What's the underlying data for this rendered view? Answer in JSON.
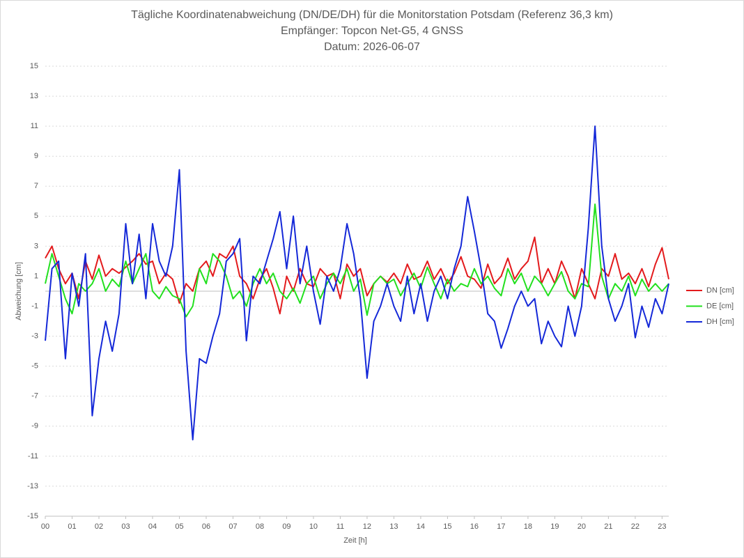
{
  "chart_data": {
    "type": "line",
    "title": "Tägliche Koordinatenabweichung (DN/DE/DH) für die Monitorstation Potsdam (Referenz 36,3 km)",
    "subtitle": "Empfänger: Topcon Net-G5, 4 GNSS",
    "date_label": "Datum: 2026-06-07",
    "x_label": "Zeit [h]",
    "y_label": "Abweichung [cm]",
    "x": [
      0,
      0.25,
      0.5,
      0.75,
      1,
      1.25,
      1.5,
      1.75,
      2,
      2.25,
      2.5,
      2.75,
      3,
      3.25,
      3.5,
      3.75,
      4,
      4.25,
      4.5,
      4.75,
      5,
      5.25,
      5.5,
      5.75,
      6,
      6.25,
      6.5,
      6.75,
      7,
      7.25,
      7.5,
      7.75,
      8,
      8.25,
      8.5,
      8.75,
      9,
      9.25,
      9.5,
      9.75,
      10,
      10.25,
      10.5,
      10.75,
      11,
      11.25,
      11.5,
      11.75,
      12,
      12.25,
      12.5,
      12.75,
      13,
      13.25,
      13.5,
      13.75,
      14,
      14.25,
      14.5,
      14.75,
      15,
      15.25,
      15.5,
      15.75,
      16,
      16.25,
      16.5,
      16.75,
      17,
      17.25,
      17.5,
      17.75,
      18,
      18.25,
      18.5,
      18.75,
      19,
      19.25,
      19.5,
      19.75,
      20,
      20.25,
      20.5,
      20.75,
      21,
      21.25,
      21.5,
      21.75,
      22,
      22.25,
      22.5,
      22.75,
      23,
      23.25
    ],
    "series": [
      {
        "name": "DN [cm]",
        "color": "#e31a1c",
        "values": [
          2.2,
          3.0,
          1.5,
          0.5,
          1.2,
          -0.5,
          2.0,
          0.8,
          2.4,
          1.0,
          1.5,
          1.2,
          1.6,
          2.0,
          2.5,
          1.8,
          2.0,
          0.5,
          1.2,
          0.8,
          -0.8,
          0.5,
          0.0,
          1.5,
          2.0,
          1.0,
          2.5,
          2.2,
          3.0,
          1.0,
          0.5,
          -0.5,
          0.8,
          1.5,
          0.2,
          -1.5,
          1.0,
          0.0,
          1.5,
          0.5,
          0.3,
          1.5,
          1.0,
          1.2,
          -0.5,
          1.8,
          1.0,
          1.5,
          -0.3,
          0.5,
          1.0,
          0.6,
          1.2,
          0.5,
          1.8,
          0.8,
          1.0,
          2.0,
          0.8,
          1.5,
          0.5,
          1.2,
          2.3,
          1.0,
          0.8,
          0.2,
          1.8,
          0.5,
          1.0,
          2.2,
          0.8,
          1.5,
          2.0,
          3.6,
          0.5,
          1.5,
          0.5,
          2.0,
          1.0,
          -0.5,
          1.5,
          0.5,
          -0.5,
          1.5,
          1.0,
          2.5,
          0.8,
          1.2,
          0.5,
          1.5,
          0.3,
          1.8,
          2.9,
          0.8
        ]
      },
      {
        "name": "DE [cm]",
        "color": "#22e01e",
        "values": [
          0.5,
          2.5,
          1.0,
          -0.5,
          -1.5,
          0.5,
          0.0,
          0.5,
          1.5,
          0.0,
          0.8,
          0.3,
          2.0,
          0.5,
          1.5,
          2.5,
          0.0,
          -0.5,
          0.3,
          -0.3,
          -0.5,
          -1.7,
          -1.0,
          1.5,
          0.5,
          2.5,
          2.0,
          1.0,
          -0.5,
          0.0,
          -1.0,
          0.5,
          1.5,
          0.5,
          1.2,
          0.0,
          -0.5,
          0.2,
          -0.8,
          0.5,
          1.0,
          -0.5,
          0.5,
          1.2,
          0.5,
          1.5,
          0.0,
          0.8,
          -1.6,
          0.5,
          1.0,
          0.5,
          0.8,
          -0.3,
          0.5,
          1.2,
          0.2,
          1.6,
          0.5,
          -0.5,
          0.8,
          0.0,
          0.5,
          0.3,
          1.5,
          0.5,
          1.0,
          0.2,
          -0.3,
          1.5,
          0.5,
          1.2,
          0.0,
          1.0,
          0.5,
          -0.3,
          0.5,
          1.3,
          0.0,
          -0.5,
          0.5,
          0.3,
          5.8,
          1.0,
          -0.5,
          0.5,
          0.0,
          1.0,
          -0.3,
          0.8,
          0.0,
          0.5,
          0.0,
          0.5
        ]
      },
      {
        "name": "DH [cm]",
        "color": "#1428d8",
        "values": [
          -3.3,
          1.5,
          2.0,
          -4.5,
          1.2,
          -1.0,
          2.5,
          -8.3,
          -4.5,
          -2.0,
          -4.0,
          -1.5,
          4.5,
          0.5,
          3.8,
          -0.5,
          4.5,
          2.0,
          1.0,
          3.0,
          8.1,
          -4.0,
          -9.9,
          -4.5,
          -4.8,
          -3.0,
          -1.5,
          2.0,
          2.5,
          3.5,
          -3.3,
          1.0,
          0.5,
          2.0,
          3.5,
          5.3,
          1.5,
          5.0,
          0.5,
          3.0,
          0.0,
          -2.2,
          1.0,
          0.0,
          1.5,
          4.5,
          2.5,
          -0.5,
          -5.8,
          -2.0,
          -1.0,
          0.5,
          -1.0,
          -2.0,
          1.0,
          -1.5,
          0.5,
          -2.0,
          0.0,
          1.0,
          -0.5,
          1.5,
          3.0,
          6.3,
          4.0,
          1.5,
          -1.5,
          -2.0,
          -3.8,
          -2.5,
          -1.0,
          0.0,
          -1.0,
          -0.5,
          -3.5,
          -2.0,
          -3.0,
          -3.7,
          -1.0,
          -3.0,
          -1.0,
          4.2,
          11.0,
          3.0,
          -0.5,
          -2.0,
          -1.0,
          0.5,
          -3.1,
          -1.0,
          -2.4,
          -0.5,
          -1.5,
          0.5
        ]
      }
    ],
    "xlim": [
      0,
      23.25
    ],
    "xticks": [
      {
        "value": 0,
        "label": "00"
      },
      {
        "value": 1,
        "label": "01"
      },
      {
        "value": 2,
        "label": "02"
      },
      {
        "value": 3,
        "label": "03"
      },
      {
        "value": 4,
        "label": "04"
      },
      {
        "value": 5,
        "label": "05"
      },
      {
        "value": 6,
        "label": "06"
      },
      {
        "value": 7,
        "label": "07"
      },
      {
        "value": 8,
        "label": "08"
      },
      {
        "value": 9,
        "label": "09"
      },
      {
        "value": 10,
        "label": "10"
      },
      {
        "value": 11,
        "label": "11"
      },
      {
        "value": 12,
        "label": "12"
      },
      {
        "value": 13,
        "label": "13"
      },
      {
        "value": 14,
        "label": "14"
      },
      {
        "value": 15,
        "label": "15"
      },
      {
        "value": 16,
        "label": "16"
      },
      {
        "value": 17,
        "label": "17"
      },
      {
        "value": 18,
        "label": "18"
      },
      {
        "value": 19,
        "label": "19"
      },
      {
        "value": 20,
        "label": "20"
      },
      {
        "value": 21,
        "label": "21"
      },
      {
        "value": 22,
        "label": "22"
      },
      {
        "value": 23,
        "label": "23"
      }
    ],
    "ylim": [
      -15,
      15
    ],
    "yticks": [
      -15,
      -13,
      -11,
      -9,
      -7,
      -5,
      -3,
      -1,
      1,
      3,
      5,
      7,
      9,
      11,
      13,
      15
    ],
    "grid": true,
    "legend": "right"
  }
}
